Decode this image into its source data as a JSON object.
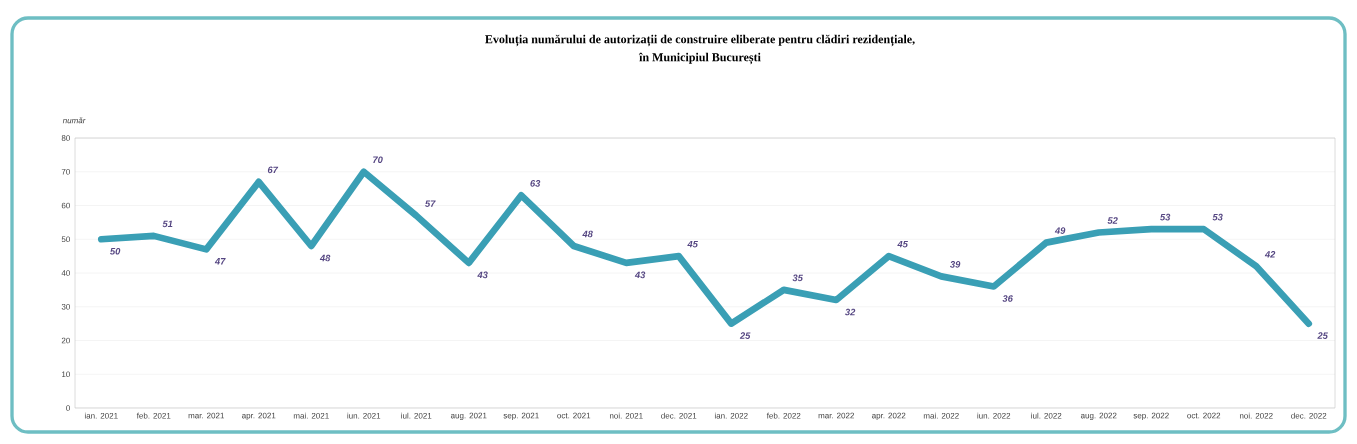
{
  "chart_data": {
    "type": "line",
    "title": "Evoluția numărului de autorizații de construire eliberate pentru clădiri rezidențiale,",
    "subtitle": "în Municipiul București",
    "ylabel": "număr",
    "categories": [
      "ian. 2021",
      "feb. 2021",
      "mar. 2021",
      "apr. 2021",
      "mai. 2021",
      "iun. 2021",
      "iul. 2021",
      "aug. 2021",
      "sep. 2021",
      "oct. 2021",
      "noi. 2021",
      "dec. 2021",
      "ian. 2022",
      "feb. 2022",
      "mar. 2022",
      "apr. 2022",
      "mai. 2022",
      "iun. 2022",
      "iul. 2022",
      "aug. 2022",
      "sep. 2022",
      "oct. 2022",
      "noi. 2022",
      "dec. 2022"
    ],
    "series": [
      {
        "color": "#3a9fb5",
        "values": [
          50,
          51,
          47,
          67,
          48,
          70,
          57,
          43,
          63,
          48,
          43,
          45,
          25,
          35,
          32,
          45,
          39,
          36,
          49,
          52,
          53,
          53,
          42,
          25
        ]
      }
    ],
    "ylim": [
      0,
      80
    ],
    "yticks": [
      0,
      10,
      20,
      30,
      40,
      50,
      60,
      70,
      80
    ],
    "grid": "y",
    "data_labels": true,
    "marker": "none",
    "line_style": "solid"
  }
}
